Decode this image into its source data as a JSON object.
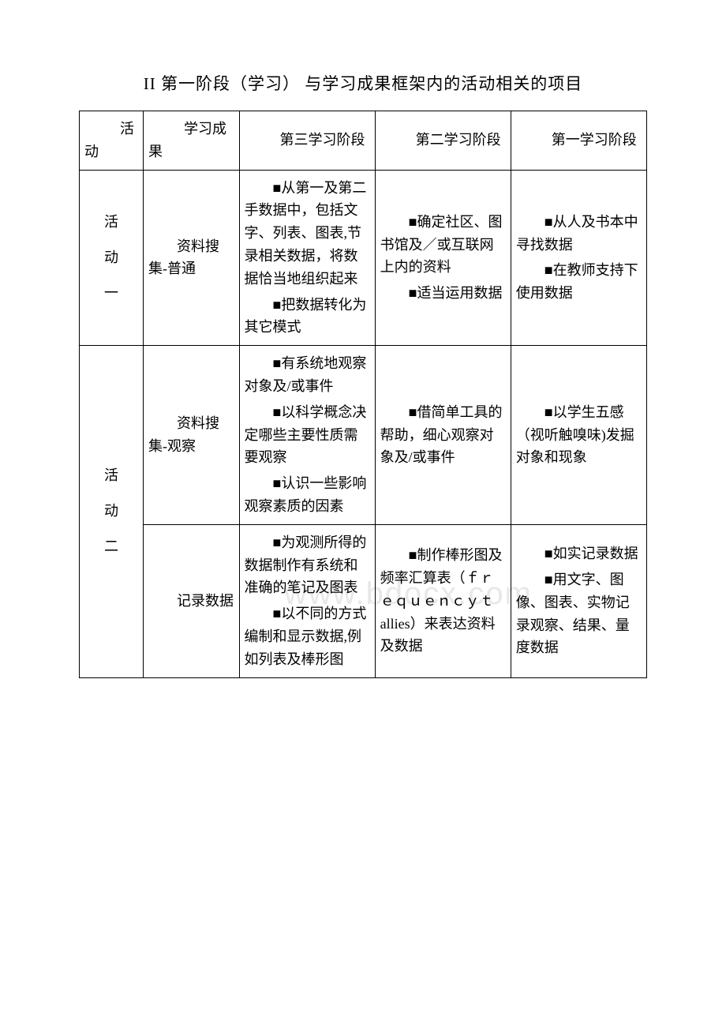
{
  "title": "II 第一阶段（学习） 与学习成果框架内的活动相关的项目",
  "watermark": "www.bdocx.com",
  "headers": {
    "activity": "活动",
    "outcome": "学习成果",
    "stage3": "第三学习阶段",
    "stage2": "第二学习阶段",
    "stage1": "第一学习阶段"
  },
  "rows": [
    {
      "activity": "活\n动\n一",
      "activityRowspan": 1,
      "outcome": "资料搜集-普通",
      "stage3": [
        "■从第一及第二手数据中，包括文字、列表、图表,节录相关数据，将数据恰当地组织起来",
        "■把数据转化为其它模式"
      ],
      "stage2": [
        "■确定社区、图书馆及／或互联网上内的资料",
        "■适当运用数据"
      ],
      "stage1": [
        "■从人及书本中寻找数据",
        "■在教师支持下使用数据"
      ]
    }
  ],
  "activity2Label": "活\n动\n二",
  "activity2Rows": [
    {
      "outcome": "资料搜集-观察",
      "stage3": [
        "■有系统地观察对象及/或事件",
        "■以科学概念决定哪些主要性质需要观察",
        "■认识一些影响观察素质的因素"
      ],
      "stage2": [
        "■借简单工具的帮助，细心观察对象及/或事件"
      ],
      "stage1": [
        "■以学生五感（视听触嗅味)发掘对象和现象"
      ]
    },
    {
      "outcome": "记录数据",
      "stage3": [
        "■为观测所得的数据制作有系统和准确的笔记及图表",
        "■以不同的方式编制和显示数据,例如列表及棒形图"
      ],
      "stage2": [
        "■制作棒形图及频率汇算表（ｆｒｅｑｕｅｎｃｙｔallies）来表达资料及数据"
      ],
      "stage1": [
        "■如实记录数据",
        "■用文字、图像、图表、实物记录观察、结果、量度数据"
      ]
    }
  ]
}
